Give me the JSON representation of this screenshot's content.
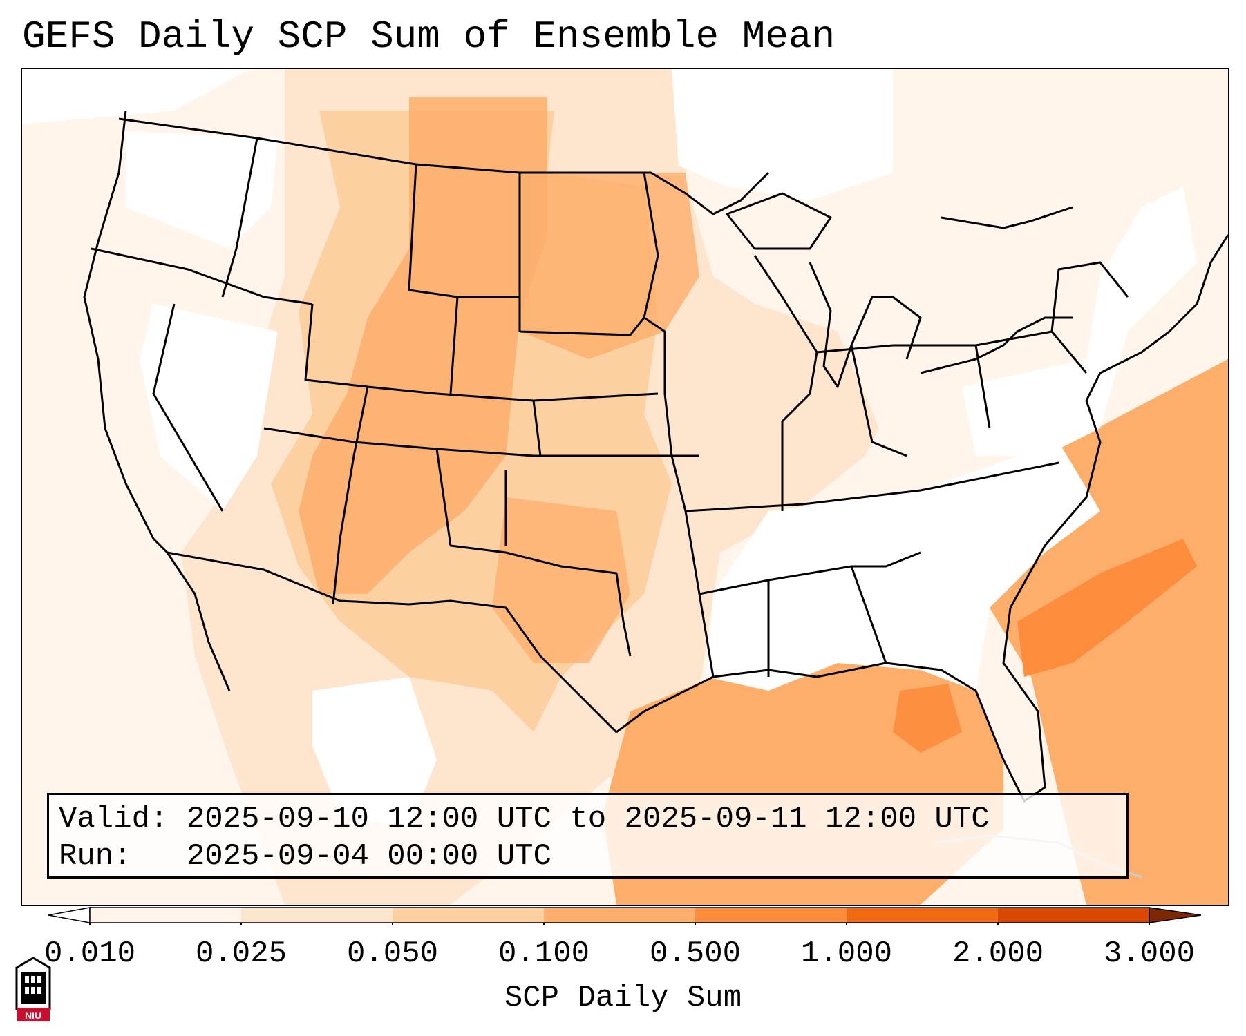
{
  "title": "GEFS Daily SCP Sum of Ensemble Mean",
  "info": {
    "valid_label": "Valid:",
    "valid_value": "2025-09-10 12:00 UTC to 2025-09-11 12:00 UTC",
    "run_label": "Run:  ",
    "run_value": "2025-09-04 00:00 UTC"
  },
  "colorbar": {
    "label": "SCP Daily Sum",
    "ticks": [
      "0.010",
      "0.025",
      "0.050",
      "0.100",
      "0.500",
      "1.000",
      "2.000",
      "3.000"
    ],
    "colors": [
      "#fff5eb",
      "#fee6ce",
      "#fdd0a2",
      "#fdae6b",
      "#fd8d3c",
      "#f16913",
      "#d94801",
      "#a63603"
    ],
    "under_color": "#ffffff",
    "over_color": "#7f2704"
  },
  "logo": {
    "text": "NIU",
    "color": "#c8102e"
  }
}
